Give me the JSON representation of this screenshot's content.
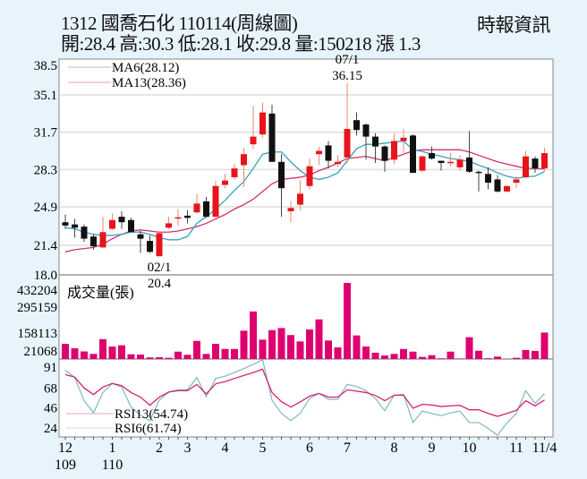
{
  "header": {
    "title": "1312  國喬石化 110114(周線圖)",
    "quote": "開:28.4 高:30.3 低:28.1 收:29.8 量:150218 漲 1.3",
    "source": "時報資訊"
  },
  "colors": {
    "up": "#e8141c",
    "down": "#111111",
    "ma6": "#3a9fbb",
    "ma13": "#d2306c",
    "volume": "#df0070",
    "rsi13": "#d4246a",
    "rsi6": "#7fb8c4",
    "background": "#e7f4fc"
  },
  "chart_data": [
    {
      "type": "candlestick",
      "ylim": [
        18.0,
        38.5
      ],
      "yticks": [
        "38.5",
        "35.1",
        "31.7",
        "28.3",
        "24.9",
        "21.4",
        "18.0"
      ],
      "grid": true,
      "legend": [
        {
          "name": "MA6(28.12)",
          "series": "ma6"
        },
        {
          "name": "MA13(28.36)",
          "series": "ma13"
        }
      ],
      "annotations": [
        {
          "week": 31,
          "date": "07/1",
          "value": "36.15",
          "position": "above"
        },
        {
          "week": 11,
          "date": "02/1",
          "value": "20.4",
          "position": "below"
        }
      ],
      "ohlc": [
        [
          23.5,
          24.2,
          22.9,
          23.2
        ],
        [
          23.3,
          23.8,
          22.1,
          23.0
        ],
        [
          23.1,
          23.3,
          21.7,
          22.0
        ],
        [
          22.2,
          22.4,
          21.0,
          21.3
        ],
        [
          21.2,
          24.0,
          21.2,
          22.6
        ],
        [
          22.9,
          24.3,
          22.8,
          23.7
        ],
        [
          24.0,
          24.5,
          22.9,
          23.5
        ],
        [
          23.7,
          23.9,
          22.6,
          22.6
        ],
        [
          22.4,
          22.7,
          20.7,
          22.0
        ],
        [
          21.8,
          22.3,
          20.7,
          20.8
        ],
        [
          20.4,
          22.6,
          20.4,
          22.5
        ],
        [
          23.0,
          24.0,
          22.9,
          23.4
        ],
        [
          23.85,
          24.7,
          23.2,
          23.95
        ],
        [
          24.1,
          24.6,
          23.4,
          23.9
        ],
        [
          24.4,
          26.1,
          24.3,
          25.2
        ],
        [
          25.4,
          25.8,
          23.9,
          24.0
        ],
        [
          24.0,
          27.3,
          23.9,
          26.8
        ],
        [
          26.9,
          27.9,
          26.6,
          27.3
        ],
        [
          27.6,
          28.8,
          27.4,
          28.4
        ],
        [
          28.7,
          30.3,
          26.7,
          29.7
        ],
        [
          30.6,
          34.1,
          30.2,
          31.3
        ],
        [
          31.5,
          34.4,
          31.2,
          33.5
        ],
        [
          33.4,
          34.2,
          29.0,
          29.0
        ],
        [
          29.0,
          29.7,
          24.0,
          26.6
        ],
        [
          24.5,
          25.4,
          23.5,
          24.8
        ],
        [
          25.1,
          27.3,
          24.6,
          26.1
        ],
        [
          26.8,
          29.3,
          26.5,
          28.6
        ],
        [
          29.7,
          30.4,
          28.7,
          30.0
        ],
        [
          30.5,
          30.9,
          28.4,
          29.1
        ],
        [
          28.8,
          29.6,
          28.5,
          29.0
        ],
        [
          29.4,
          36.15,
          28.9,
          32.0
        ],
        [
          32.8,
          33.5,
          31.4,
          31.9
        ],
        [
          32.4,
          32.5,
          29.2,
          31.3
        ],
        [
          31.3,
          31.6,
          28.9,
          30.4
        ],
        [
          30.4,
          30.5,
          28.1,
          29.1
        ],
        [
          29.2,
          31.6,
          28.8,
          30.9
        ],
        [
          30.9,
          32.0,
          29.8,
          31.2
        ],
        [
          31.4,
          31.5,
          28.0,
          28.0
        ],
        [
          28.2,
          29.6,
          28.1,
          29.5
        ],
        [
          29.8,
          30.4,
          29.2,
          29.3
        ],
        [
          29.1,
          29.1,
          28.2,
          28.9
        ],
        [
          28.9,
          29.8,
          28.6,
          29.0
        ],
        [
          28.5,
          29.6,
          28.2,
          29.2
        ],
        [
          29.4,
          31.8,
          28.0,
          28.1
        ],
        [
          28.1,
          28.2,
          26.3,
          28.0
        ],
        [
          27.9,
          28.5,
          26.5,
          27.1
        ],
        [
          27.4,
          27.8,
          26.2,
          26.3
        ],
        [
          26.3,
          26.8,
          26.2,
          26.8
        ],
        [
          27.1,
          27.7,
          26.6,
          27.4
        ],
        [
          27.6,
          30.0,
          27.5,
          29.5
        ],
        [
          29.3,
          29.5,
          28.0,
          28.4
        ],
        [
          28.4,
          30.3,
          28.1,
          29.8
        ]
      ],
      "ma6": [
        23.0,
        22.9,
        22.6,
        22.4,
        22.3,
        22.3,
        22.4,
        22.6,
        22.6,
        22.4,
        22.1,
        21.9,
        21.9,
        22.2,
        23.4,
        24.0,
        24.7,
        25.5,
        26.4,
        27.2,
        28.4,
        29.7,
        29.9,
        29.9,
        29.0,
        28.2,
        27.6,
        27.4,
        27.6,
        28.0,
        29.1,
        30.2,
        30.6,
        30.6,
        30.7,
        30.8,
        30.9,
        30.1,
        29.95,
        29.7,
        29.5,
        29.3,
        29.2,
        29.05,
        28.7,
        28.4,
        28.0,
        27.7,
        27.5,
        27.65,
        27.7,
        28.12
      ],
      "ma13": [
        20.8,
        21.0,
        21.1,
        21.2,
        21.5,
        22.0,
        22.4,
        22.7,
        22.8,
        22.7,
        22.6,
        22.6,
        22.7,
        22.9,
        23.1,
        23.4,
        23.8,
        24.2,
        24.7,
        25.1,
        25.6,
        26.3,
        27.0,
        27.4,
        27.5,
        27.6,
        27.8,
        28.2,
        28.5,
        28.9,
        29.3,
        29.4,
        29.5,
        29.3,
        29.1,
        29.4,
        29.7,
        30.0,
        30.1,
        30.1,
        30.1,
        30.1,
        30.1,
        29.9,
        29.6,
        29.3,
        29.0,
        28.8,
        28.6,
        28.4,
        28.4,
        28.36
      ]
    },
    {
      "type": "bar",
      "title": "成交量(張)",
      "ylim": [
        0,
        432204
      ],
      "yticks": [
        "432204",
        "295159",
        "158113",
        "21068"
      ],
      "values": [
        86000,
        61000,
        43000,
        29000,
        113000,
        71000,
        78000,
        27000,
        25000,
        9000,
        10000,
        7000,
        42000,
        24000,
        103000,
        29000,
        86000,
        57000,
        57000,
        161000,
        270000,
        110000,
        164000,
        176000,
        136000,
        100000,
        168000,
        225000,
        105000,
        66000,
        432204,
        134000,
        71000,
        36000,
        20000,
        29000,
        57000,
        42000,
        12000,
        22000,
        4000,
        42000,
        2000,
        124000,
        47000,
        4000,
        14000,
        1000,
        7000,
        51000,
        46000,
        150218
      ]
    },
    {
      "type": "line",
      "ylim": [
        15,
        100
      ],
      "yticks": [
        "91",
        "68",
        "46",
        "24"
      ],
      "series": [
        {
          "name": "RSI13(54.74)",
          "key": "rsi13",
          "values": [
            82.8,
            80,
            68,
            60.8,
            69,
            73,
            70.6,
            63,
            58,
            49,
            58,
            63.5,
            65,
            65,
            72,
            61.5,
            72.6,
            75,
            78.5,
            81.8,
            85,
            88.7,
            63,
            53,
            47,
            52.6,
            59,
            62,
            58,
            58,
            66,
            64.5,
            63,
            59.8,
            54,
            60,
            60,
            45.7,
            50,
            49.3,
            47.6,
            48.3,
            49,
            44,
            44,
            40,
            36.8,
            40,
            43.4,
            54,
            48.3,
            54.74
          ]
        },
        {
          "name": "RSI6(61.74)",
          "key": "rsi6",
          "values": [
            87.7,
            79.5,
            54,
            40.7,
            63,
            73,
            69,
            47,
            38,
            32,
            54.5,
            63.5,
            66,
            66,
            79.5,
            58.5,
            78.5,
            81,
            85,
            89.3,
            94,
            99,
            54.5,
            40,
            32,
            40,
            56.5,
            62,
            55.5,
            55.5,
            72,
            69.6,
            65,
            56.5,
            43,
            60,
            61,
            30,
            42.5,
            40,
            37.5,
            40.7,
            42.5,
            30,
            30,
            23.5,
            16,
            29.5,
            40,
            65,
            51,
            61.74
          ]
        }
      ]
    }
  ],
  "xaxis": {
    "labels": [
      {
        "week": 1,
        "month": "12",
        "year": "109"
      },
      {
        "week": 6,
        "month": "1",
        "year": "110"
      },
      {
        "week": 11,
        "month": "2",
        "year": ""
      },
      {
        "week": 14,
        "month": "3",
        "year": ""
      },
      {
        "week": 18,
        "month": "4",
        "year": ""
      },
      {
        "week": 22,
        "month": "5",
        "year": ""
      },
      {
        "week": 27,
        "month": "6",
        "year": ""
      },
      {
        "week": 31,
        "month": "7",
        "year": ""
      },
      {
        "week": 36,
        "month": "8",
        "year": ""
      },
      {
        "week": 40,
        "month": "9",
        "year": ""
      },
      {
        "week": 44,
        "month": "10",
        "year": ""
      },
      {
        "week": 49,
        "month": "11",
        "year": ""
      },
      {
        "week": 52,
        "month": "11/4",
        "year": ""
      }
    ]
  }
}
